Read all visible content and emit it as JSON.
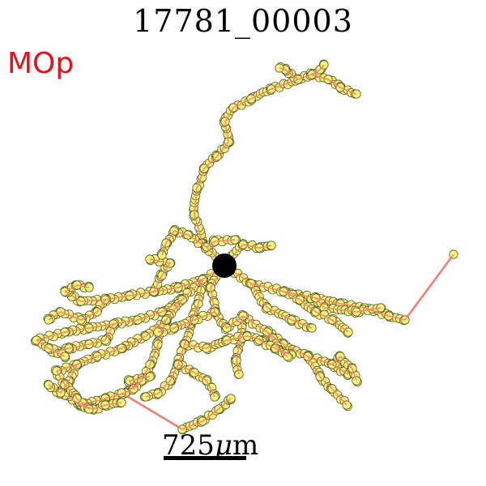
{
  "title": "17781_00003",
  "region_label": "MOp",
  "scale_bar": {
    "value": "725",
    "unit_symbol": "μ",
    "unit_suffix": "m"
  },
  "colors": {
    "region_label": "#e8101b",
    "branch_line": "#f47f72",
    "node_fill": "#f7f47a",
    "node_stroke": "#5b5a2a",
    "soma": "#000000"
  }
}
